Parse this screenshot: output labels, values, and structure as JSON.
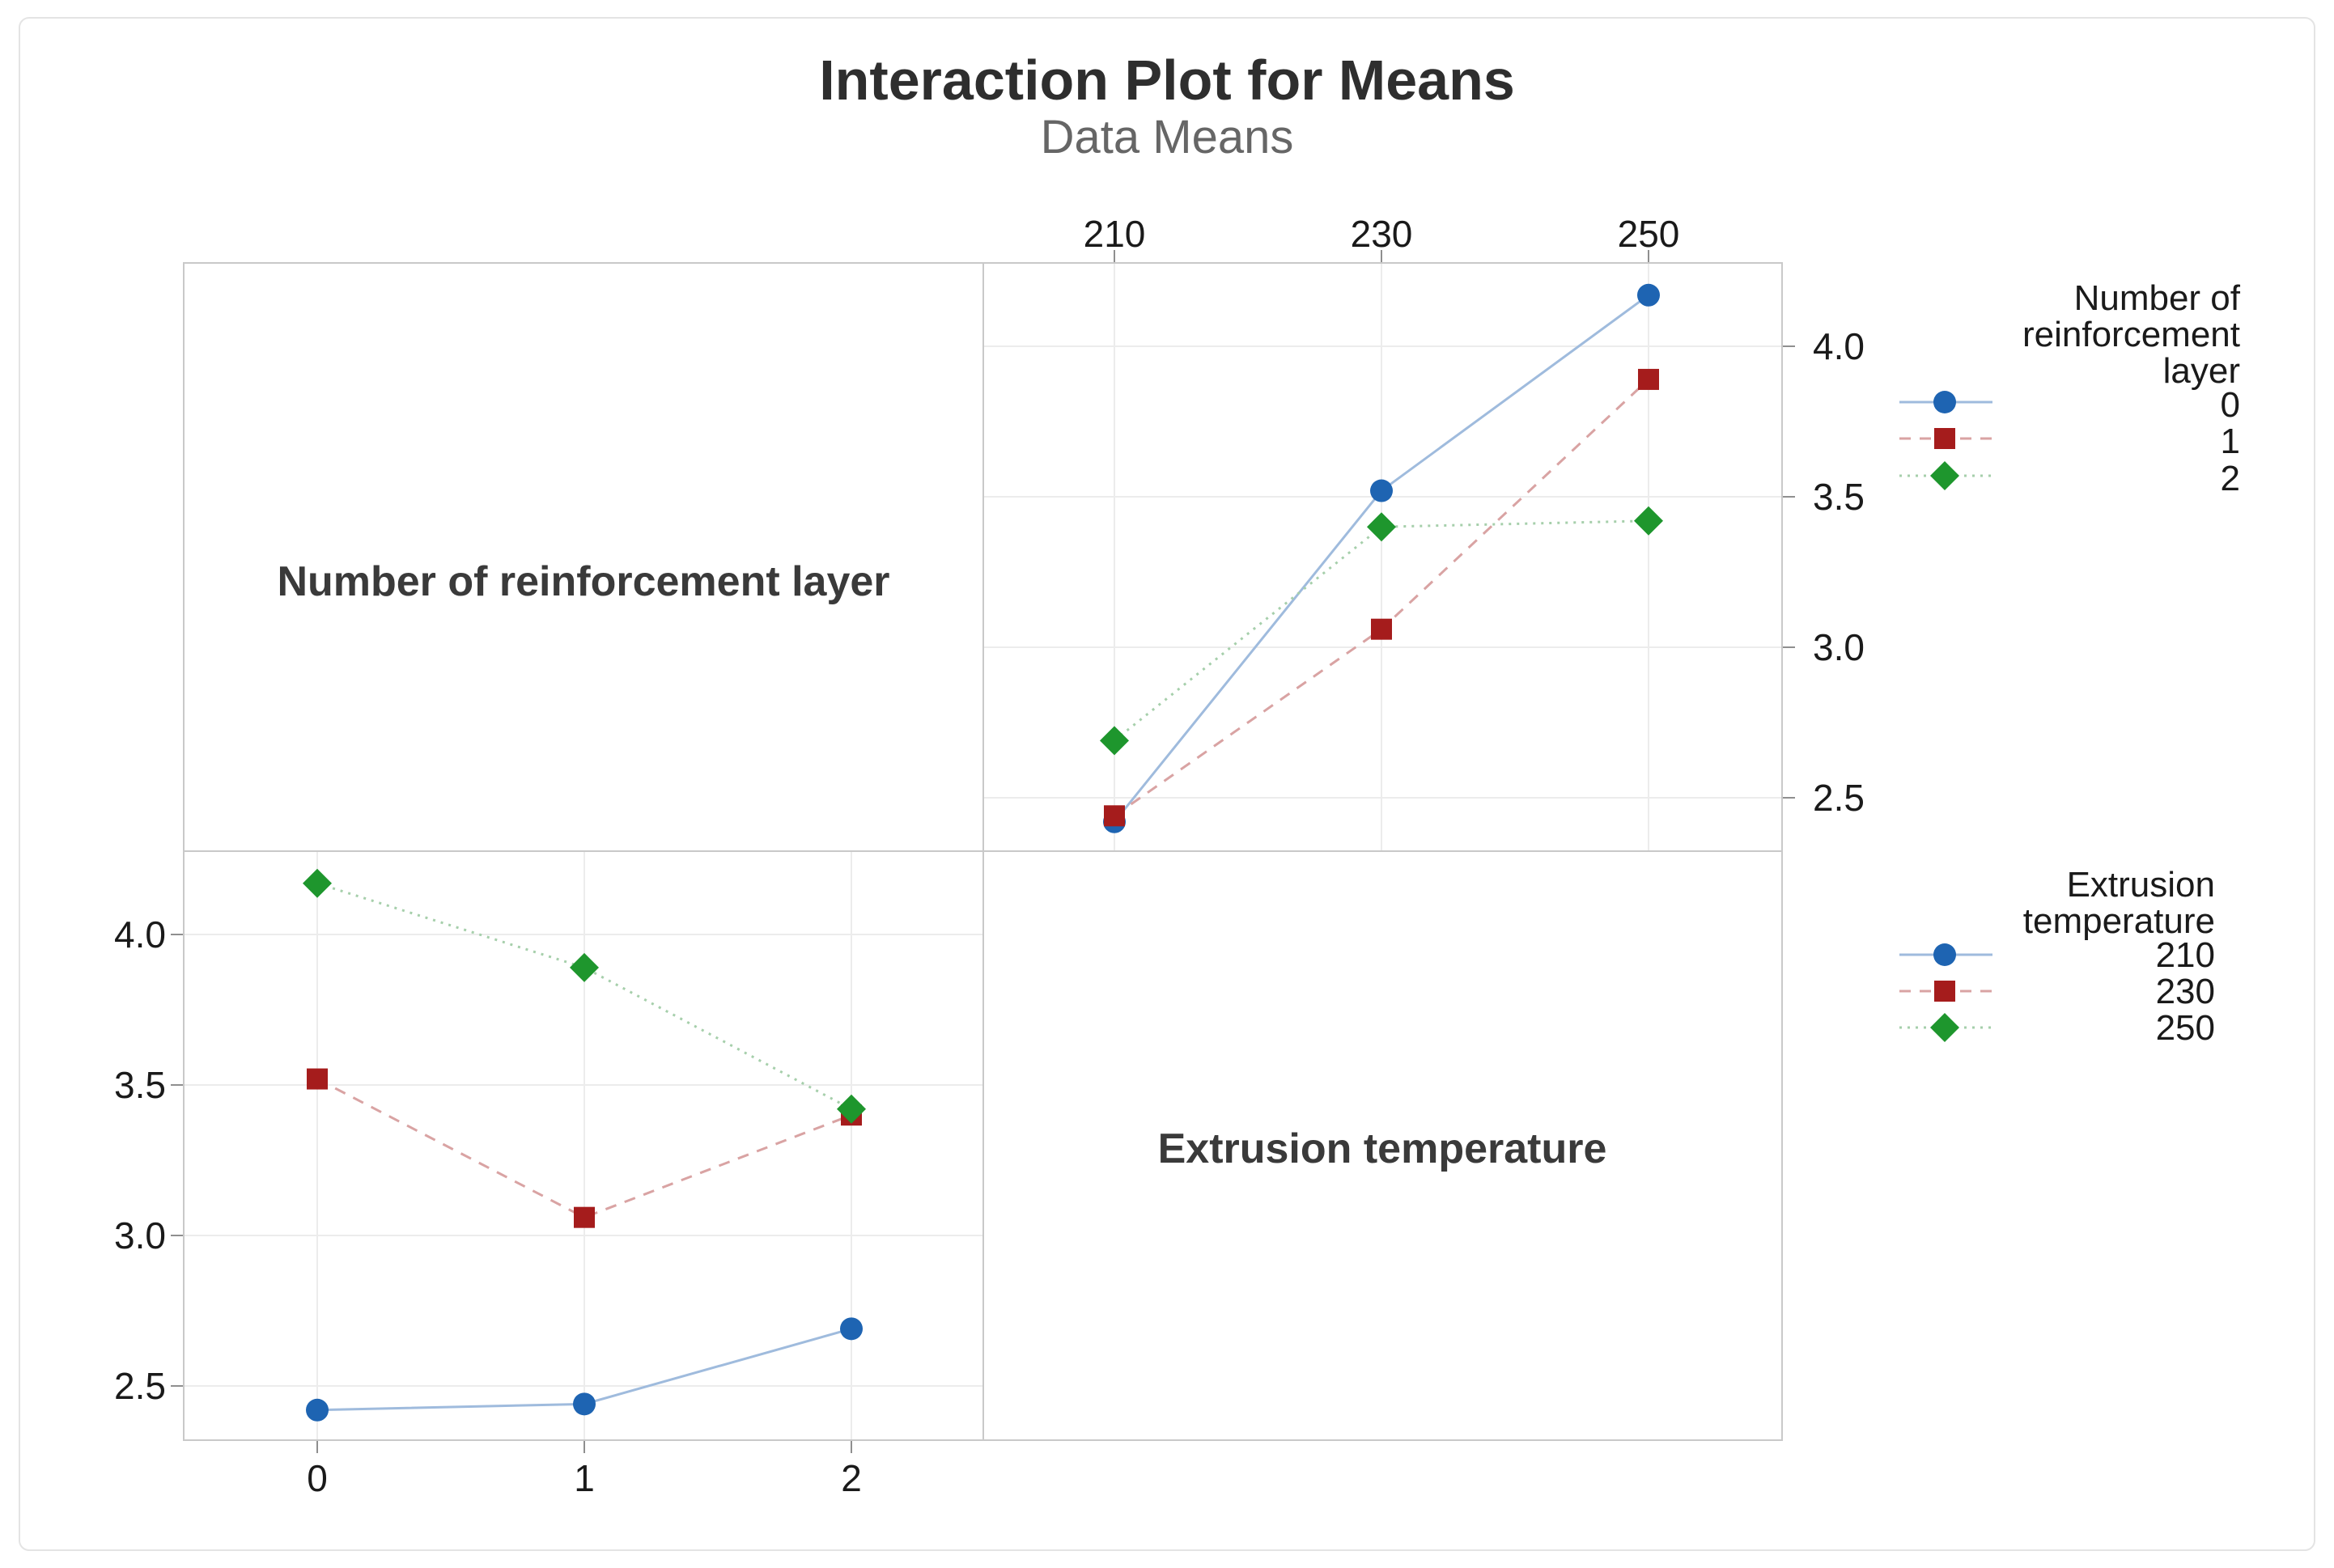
{
  "title": "Interaction Plot for Means",
  "subtitle": "Data Means",
  "panels": {
    "factor_row": "Number of reinforcement layer",
    "factor_col": "Extrusion temperature"
  },
  "legends": [
    {
      "title_lines": [
        "Number of",
        "reinforcement",
        "layer"
      ],
      "entries": [
        "0",
        "1",
        "2"
      ]
    },
    {
      "title_lines": [
        "Extrusion",
        "temperature"
      ],
      "entries": [
        "210",
        "230",
        "250"
      ]
    }
  ],
  "series_styles": {
    "marker_shapes": [
      "circle",
      "square",
      "diamond"
    ],
    "marker_colors": [
      "#1E64B2",
      "#A51C1C",
      "#1E962D"
    ],
    "line_colors": [
      "#9FBBDD",
      "#D9A3A3",
      "#A6CFAB"
    ],
    "dash_patterns": [
      "none",
      "14 11",
      "3 7"
    ]
  },
  "frame_colors": {
    "grid": "#ECECEC",
    "panel_border": "#C9C9C9",
    "tick": "#8F8F8F",
    "figure_border": "#E4E4E4"
  },
  "chart_data": [
    {
      "type": "line",
      "panel": "top-right",
      "title": "Number of reinforcement layer means vs Extrusion temperature",
      "xlabel": "Extrusion temperature",
      "x_axis_position": "top",
      "y_axis_position": "right",
      "categories": [
        "210",
        "230",
        "250"
      ],
      "series": [
        {
          "name": "0",
          "values": [
            2.42,
            3.52,
            4.17
          ]
        },
        {
          "name": "1",
          "values": [
            2.44,
            3.06,
            3.89
          ]
        },
        {
          "name": "2",
          "values": [
            2.69,
            3.4,
            3.42
          ]
        }
      ],
      "y_ticks": [
        "4.0",
        "3.5",
        "3.0",
        "2.5"
      ],
      "y_tick_values": [
        4.0,
        3.5,
        3.0,
        2.5
      ],
      "ylim": [
        2.32,
        4.28
      ],
      "grid": true,
      "legend_title": "Number of reinforcement layer"
    },
    {
      "type": "line",
      "panel": "bottom-left",
      "title": "Extrusion temperature means vs Number of reinforcement layer",
      "xlabel": "Number of reinforcement layer",
      "x_axis_position": "bottom",
      "y_axis_position": "left",
      "categories": [
        "0",
        "1",
        "2"
      ],
      "series": [
        {
          "name": "210",
          "values": [
            2.42,
            2.44,
            2.69
          ]
        },
        {
          "name": "230",
          "values": [
            3.52,
            3.06,
            3.4
          ]
        },
        {
          "name": "250",
          "values": [
            4.17,
            3.89,
            3.42
          ]
        }
      ],
      "y_ticks": [
        "4.0",
        "3.5",
        "3.0",
        "2.5"
      ],
      "y_tick_values": [
        4.0,
        3.5,
        3.0,
        2.5
      ],
      "ylim": [
        2.32,
        4.28
      ],
      "grid": true,
      "legend_title": "Extrusion temperature"
    }
  ]
}
